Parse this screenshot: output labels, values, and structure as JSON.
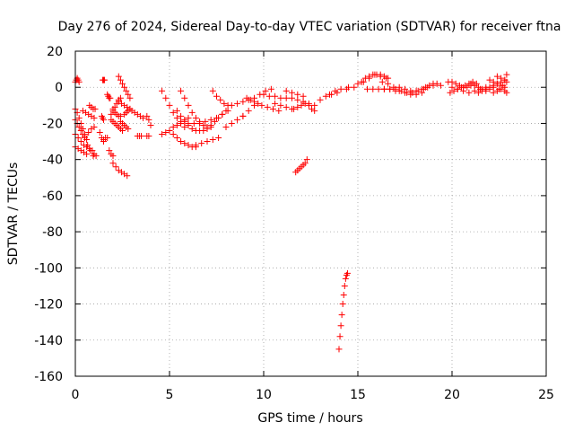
{
  "chart_data": {
    "type": "scatter",
    "title": "Day 276 of 2024, Sidereal Day-to-day VTEC variation (SDTVAR) for receiver ftna",
    "xlabel": "GPS time / hours",
    "ylabel": "SDTVAR / TECUs",
    "xlim": [
      0,
      25
    ],
    "ylim": [
      -160,
      20
    ],
    "xticks": [
      0,
      5,
      10,
      15,
      20,
      25
    ],
    "yticks": [
      20,
      0,
      -20,
      -40,
      -60,
      -80,
      -100,
      -120,
      -140,
      -160
    ],
    "grid": true,
    "marker": "plus",
    "color": "#ff0000",
    "series": [
      {
        "name": "seg01",
        "x": [
          0.0,
          0.05,
          0.1,
          0.15,
          0.2
        ],
        "y": [
          3,
          4,
          5,
          4,
          3
        ]
      },
      {
        "name": "seg02",
        "x": [
          0.0,
          0.1,
          0.2,
          0.3,
          0.4,
          0.5,
          0.6
        ],
        "y": [
          -12,
          -14,
          -17,
          -20,
          -23,
          -26,
          -29
        ]
      },
      {
        "name": "seg03",
        "x": [
          0.0,
          0.1,
          0.2,
          0.3,
          0.4,
          0.5
        ],
        "y": [
          -18,
          -20,
          -22,
          -24,
          -26,
          -27
        ]
      },
      {
        "name": "seg04",
        "x": [
          0.0,
          0.15,
          0.3,
          0.45,
          0.6,
          0.75,
          0.9
        ],
        "y": [
          -26,
          -28,
          -30,
          -32,
          -33,
          -34,
          -35
        ]
      },
      {
        "name": "seg05",
        "x": [
          0.0,
          0.15,
          0.3,
          0.45,
          0.6
        ],
        "y": [
          -33,
          -34,
          -35,
          -36,
          -37
        ]
      },
      {
        "name": "seg06",
        "x": [
          0.4,
          0.55,
          0.7,
          0.85,
          1.0
        ],
        "y": [
          -13,
          -14,
          -15,
          -16,
          -17
        ]
      },
      {
        "name": "seg07",
        "x": [
          0.5,
          0.65,
          0.8,
          0.95
        ],
        "y": [
          -28,
          -32,
          -35,
          -38
        ]
      },
      {
        "name": "seg08",
        "x": [
          0.7,
          0.85,
          1.0
        ],
        "y": [
          -25,
          -23,
          -22
        ]
      },
      {
        "name": "seg09",
        "x": [
          0.75,
          0.85,
          0.95,
          1.05
        ],
        "y": [
          -10,
          -11,
          -12,
          -12
        ]
      },
      {
        "name": "seg10",
        "x": [
          1.0,
          1.1
        ],
        "y": [
          -37,
          -38
        ]
      },
      {
        "name": "seg11",
        "x": [
          1.3,
          1.4,
          1.5
        ],
        "y": [
          -25,
          -28,
          -30
        ]
      },
      {
        "name": "seg12",
        "x": [
          1.4,
          1.45,
          1.5
        ],
        "y": [
          -16,
          -17,
          -18
        ]
      },
      {
        "name": "seg13",
        "x": [
          1.45,
          1.5,
          1.55
        ],
        "y": [
          4,
          4,
          4
        ]
      },
      {
        "name": "seg14",
        "x": [
          1.5,
          1.6,
          1.7
        ],
        "y": [
          -29,
          -28,
          -28
        ]
      },
      {
        "name": "seg15",
        "x": [
          1.7,
          1.75,
          1.8,
          1.85
        ],
        "y": [
          -4,
          -5,
          -6,
          -6
        ]
      },
      {
        "name": "seg16",
        "x": [
          1.9,
          2.0,
          2.1,
          2.2,
          2.3,
          2.4
        ],
        "y": [
          -15,
          -13,
          -11,
          -9,
          -7,
          -6
        ]
      },
      {
        "name": "seg17",
        "x": [
          1.9,
          2.0,
          2.1,
          2.2,
          2.3,
          2.4,
          2.5
        ],
        "y": [
          -18,
          -19,
          -20,
          -21,
          -22,
          -23,
          -24
        ]
      },
      {
        "name": "seg18",
        "x": [
          1.8,
          1.9,
          2.0
        ],
        "y": [
          -35,
          -37,
          -38
        ]
      },
      {
        "name": "seg19",
        "x": [
          2.0,
          2.15,
          2.3,
          2.45,
          2.6,
          2.75
        ],
        "y": [
          -42,
          -44,
          -46,
          -47,
          -48,
          -49
        ]
      },
      {
        "name": "seg20",
        "x": [
          2.0,
          2.1,
          2.2,
          2.3,
          2.4
        ],
        "y": [
          -12,
          -14,
          -15,
          -16,
          -16
        ]
      },
      {
        "name": "seg21",
        "x": [
          2.3,
          2.4,
          2.5,
          2.6,
          2.7,
          2.8,
          2.9
        ],
        "y": [
          6,
          4,
          2,
          0,
          -2,
          -4,
          -6
        ]
      },
      {
        "name": "seg22",
        "x": [
          2.3,
          2.45,
          2.6,
          2.75,
          2.9
        ],
        "y": [
          -8,
          -9,
          -10,
          -11,
          -12
        ]
      },
      {
        "name": "seg23",
        "x": [
          2.4,
          2.5,
          2.6,
          2.7,
          2.8
        ],
        "y": [
          -19,
          -20,
          -21,
          -22,
          -23
        ]
      },
      {
        "name": "seg24",
        "x": [
          2.6,
          2.7,
          2.8,
          2.9
        ],
        "y": [
          -15,
          -14,
          -13,
          -12
        ]
      },
      {
        "name": "seg25",
        "x": [
          3.0,
          3.15,
          3.3,
          3.45,
          3.6
        ],
        "y": [
          -13,
          -14,
          -15,
          -16,
          -17
        ]
      },
      {
        "name": "seg26",
        "x": [
          3.3,
          3.4,
          3.5
        ],
        "y": [
          -27,
          -27,
          -27
        ]
      },
      {
        "name": "seg27",
        "x": [
          3.8,
          3.9,
          4.0
        ],
        "y": [
          -16,
          -18,
          -21
        ]
      },
      {
        "name": "seg28",
        "x": [
          3.8,
          3.9
        ],
        "y": [
          -27,
          -27
        ]
      },
      {
        "name": "seg29",
        "x": [
          4.6,
          4.8,
          5.0,
          5.2,
          5.4,
          5.6,
          5.8,
          6.0
        ],
        "y": [
          -26,
          -25,
          -24,
          -22,
          -21,
          -19,
          -18,
          -17
        ]
      },
      {
        "name": "seg30",
        "x": [
          4.6,
          4.8,
          5.0,
          5.2,
          5.4,
          5.6,
          5.8
        ],
        "y": [
          -2,
          -6,
          -10,
          -14,
          -17,
          -20,
          -22
        ]
      },
      {
        "name": "seg31",
        "x": [
          5.0,
          5.2,
          5.4,
          5.6,
          5.8,
          6.0,
          6.2,
          6.4
        ],
        "y": [
          -24,
          -26,
          -28,
          -30,
          -31,
          -32,
          -33,
          -33
        ]
      },
      {
        "name": "seg32",
        "x": [
          5.4,
          5.6,
          5.8,
          6.0,
          6.2,
          6.4,
          6.6
        ],
        "y": [
          -13,
          -16,
          -19,
          -21,
          -23,
          -24,
          -24
        ]
      },
      {
        "name": "seg33",
        "x": [
          5.6,
          5.8,
          6.0,
          6.2,
          6.4,
          6.6,
          6.8,
          7.0,
          7.2
        ],
        "y": [
          -2,
          -6,
          -10,
          -14,
          -17,
          -19,
          -21,
          -22,
          -22
        ]
      },
      {
        "name": "seg34",
        "x": [
          6.0,
          6.3,
          6.6,
          6.9,
          7.2,
          7.5,
          7.8,
          8.1
        ],
        "y": [
          -20,
          -20,
          -20,
          -19,
          -18,
          -17,
          -15,
          -13
        ]
      },
      {
        "name": "seg35",
        "x": [
          6.4,
          6.7,
          7.0,
          7.3,
          7.6
        ],
        "y": [
          -32,
          -31,
          -30,
          -29,
          -28
        ]
      },
      {
        "name": "seg36",
        "x": [
          6.8,
          7.0,
          7.2,
          7.4,
          7.6,
          7.8,
          8.0
        ],
        "y": [
          -24,
          -23,
          -21,
          -19,
          -17,
          -15,
          -13
        ]
      },
      {
        "name": "seg37",
        "x": [
          7.3,
          7.5,
          7.7,
          7.9,
          8.1
        ],
        "y": [
          -2,
          -5,
          -7,
          -9,
          -10
        ]
      },
      {
        "name": "seg38",
        "x": [
          8.0,
          8.3,
          8.6,
          8.9
        ],
        "y": [
          -22,
          -20,
          -18,
          -16
        ]
      },
      {
        "name": "seg39",
        "x": [
          8.3,
          8.6,
          8.9,
          9.2
        ],
        "y": [
          -10,
          -9,
          -8,
          -7
        ]
      },
      {
        "name": "seg40",
        "x": [
          8.9,
          9.2,
          9.5
        ],
        "y": [
          -16,
          -13,
          -10
        ]
      },
      {
        "name": "seg41",
        "x": [
          9.1,
          9.3,
          9.5,
          9.7
        ],
        "y": [
          -6,
          -7,
          -8,
          -9
        ]
      },
      {
        "name": "seg42",
        "x": [
          9.5,
          9.8,
          10.1,
          10.4
        ],
        "y": [
          -6,
          -4,
          -2,
          -1
        ]
      },
      {
        "name": "seg43",
        "x": [
          9.9,
          10.2,
          10.5,
          10.8
        ],
        "y": [
          -10,
          -11,
          -12,
          -13
        ]
      },
      {
        "name": "seg44",
        "x": [
          10.0,
          10.3,
          10.6,
          10.9,
          11.2
        ],
        "y": [
          -4,
          -5,
          -5,
          -6,
          -6
        ]
      },
      {
        "name": "seg45",
        "x": [
          10.6,
          10.9,
          11.2,
          11.5
        ],
        "y": [
          -9,
          -10,
          -11,
          -12
        ]
      },
      {
        "name": "seg46",
        "x": [
          11.2,
          11.5,
          11.8,
          12.1
        ],
        "y": [
          -2,
          -3,
          -4,
          -5
        ]
      },
      {
        "name": "seg47",
        "x": [
          11.5,
          11.8,
          12.1,
          12.4,
          12.7
        ],
        "y": [
          -6,
          -7,
          -8,
          -9,
          -10
        ]
      },
      {
        "name": "seg48",
        "x": [
          11.6,
          11.8,
          12.0,
          12.2
        ],
        "y": [
          -12,
          -11,
          -10,
          -9
        ]
      },
      {
        "name": "seg49",
        "x": [
          12.4,
          12.55,
          12.7
        ],
        "y": [
          -10,
          -12,
          -13
        ]
      },
      {
        "name": "seg50",
        "x": [
          11.7,
          11.8,
          11.9,
          12.0,
          12.1,
          12.2,
          12.3
        ],
        "y": [
          -47,
          -46,
          -45,
          -44,
          -43,
          -42,
          -40
        ]
      },
      {
        "name": "seg51",
        "x": [
          13.0,
          13.3,
          13.6,
          13.9
        ],
        "y": [
          -7,
          -5,
          -4,
          -3
        ]
      },
      {
        "name": "seg52",
        "x": [
          13.5,
          13.8,
          14.1
        ],
        "y": [
          -4,
          -2,
          -1
        ]
      },
      {
        "name": "seg53",
        "x": [
          14.0,
          14.05,
          14.1,
          14.15,
          14.2,
          14.25,
          14.3,
          14.35,
          14.4,
          14.45
        ],
        "y": [
          -145,
          -138,
          -132,
          -126,
          -120,
          -115,
          -110,
          -106,
          -104,
          -103
        ]
      },
      {
        "name": "seg54",
        "x": [
          14.4,
          14.5
        ],
        "y": [
          -1,
          0
        ]
      },
      {
        "name": "seg55",
        "x": [
          14.8,
          15.0,
          15.2,
          15.4,
          15.6,
          15.8,
          16.0,
          16.2,
          16.4,
          16.6
        ],
        "y": [
          0,
          2,
          3,
          5,
          6,
          7,
          7,
          7,
          6,
          5
        ]
      },
      {
        "name": "seg56",
        "x": [
          15.3,
          15.6,
          15.9,
          16.2,
          16.5
        ],
        "y": [
          3,
          5,
          7,
          6,
          5
        ]
      },
      {
        "name": "seg57",
        "x": [
          15.5,
          15.8,
          16.1,
          16.4,
          16.7,
          17.0
        ],
        "y": [
          -1,
          -1,
          -1,
          -1,
          -1,
          -1
        ]
      },
      {
        "name": "seg58",
        "x": [
          16.4,
          16.7,
          17.0,
          17.3,
          17.6,
          17.9,
          18.2,
          18.5
        ],
        "y": [
          -1,
          -1,
          -2,
          -2,
          -3,
          -3,
          -2,
          -1
        ]
      },
      {
        "name": "seg59",
        "x": [
          16.3,
          16.6,
          16.9,
          17.2,
          17.5,
          17.8,
          18.1,
          18.4
        ],
        "y": [
          3,
          2,
          0,
          -2,
          -3,
          -4,
          -4,
          -3
        ]
      },
      {
        "name": "seg60",
        "x": [
          17.2,
          17.5,
          17.8,
          18.1,
          18.4,
          18.7,
          19.0
        ],
        "y": [
          0,
          -1,
          -2,
          -2,
          -1,
          0,
          1
        ]
      },
      {
        "name": "seg61",
        "x": [
          18.6,
          18.8,
          19.0,
          19.2,
          19.4
        ],
        "y": [
          0,
          1,
          2,
          2,
          1
        ]
      },
      {
        "name": "seg62",
        "x": [
          19.8,
          20.0,
          20.2,
          20.4,
          20.6,
          20.8,
          21.0
        ],
        "y": [
          3,
          3,
          2,
          1,
          0,
          0,
          1
        ]
      },
      {
        "name": "seg63",
        "x": [
          19.9,
          20.1,
          20.3,
          20.5,
          20.7,
          20.9,
          21.1,
          21.3
        ],
        "y": [
          -3,
          -2,
          -1,
          0,
          1,
          2,
          3,
          2
        ]
      },
      {
        "name": "seg64",
        "x": [
          20.0,
          20.3,
          20.6,
          20.9,
          21.2,
          21.5,
          21.8
        ],
        "y": [
          0,
          -1,
          -2,
          -3,
          -2,
          -1,
          0
        ]
      },
      {
        "name": "seg65",
        "x": [
          21.0,
          21.2,
          21.4,
          21.6,
          21.8,
          22.0,
          22.2
        ],
        "y": [
          2,
          1,
          0,
          -1,
          -2,
          -1,
          0
        ]
      },
      {
        "name": "seg66",
        "x": [
          21.4,
          21.6,
          21.8,
          22.0,
          22.2,
          22.4,
          22.6,
          22.8
        ],
        "y": [
          -3,
          -2,
          -1,
          0,
          1,
          2,
          3,
          4
        ]
      },
      {
        "name": "seg67",
        "x": [
          22.0,
          22.2,
          22.4,
          22.6,
          22.8
        ],
        "y": [
          4,
          3,
          2,
          1,
          0
        ]
      },
      {
        "name": "seg68",
        "x": [
          22.4,
          22.6,
          22.8,
          22.9
        ],
        "y": [
          6,
          5,
          4,
          3
        ]
      },
      {
        "name": "seg69",
        "x": [
          22.2,
          22.4,
          22.6,
          22.8,
          22.9
        ],
        "y": [
          -3,
          -2,
          -1,
          -2,
          -3
        ]
      },
      {
        "name": "seg70",
        "x": [
          22.5,
          22.7,
          22.9
        ],
        "y": [
          -1,
          1,
          7
        ]
      }
    ]
  }
}
